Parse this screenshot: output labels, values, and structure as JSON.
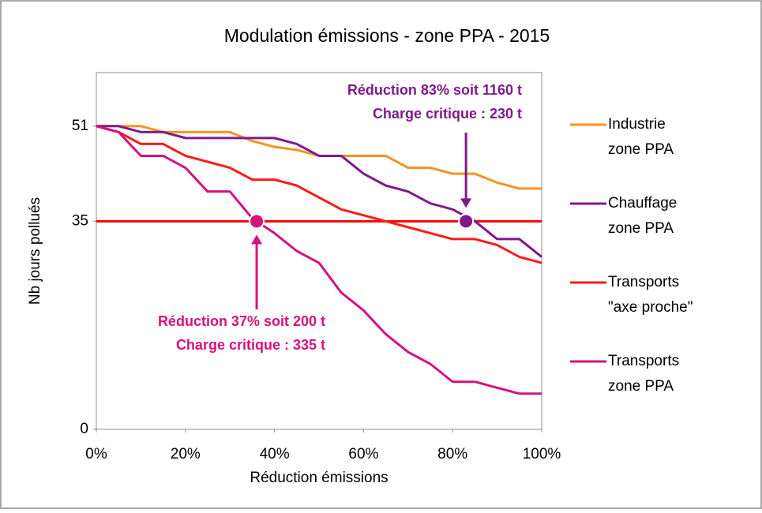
{
  "chart_data": {
    "type": "line",
    "title": "Modulation émissions - zone PPA - 2015",
    "x_label": "Réduction émissions",
    "y_label": "Nb jours pollués",
    "x": [
      0,
      5,
      10,
      15,
      20,
      25,
      30,
      35,
      40,
      45,
      50,
      55,
      60,
      65,
      70,
      75,
      80,
      85,
      90,
      95,
      100
    ],
    "xlim": [
      0,
      100
    ],
    "xticks": [
      {
        "value": 0,
        "label": "0%"
      },
      {
        "value": 20,
        "label": "20%"
      },
      {
        "value": 40,
        "label": "40%"
      },
      {
        "value": 60,
        "label": "60%"
      },
      {
        "value": 80,
        "label": "80%"
      },
      {
        "value": 100,
        "label": "100%"
      }
    ],
    "ylim": [
      0,
      60
    ],
    "yticks": [
      0,
      35,
      51
    ],
    "reference_line": {
      "value": 35,
      "color": "#ff0000"
    },
    "series": [
      {
        "name": "Industrie zone PPA",
        "color": "#f7941d",
        "values": [
          51,
          51,
          51,
          50,
          50,
          50,
          50,
          48.5,
          47.5,
          47,
          46,
          46,
          46,
          46,
          44,
          44,
          43,
          43,
          41.5,
          40.5,
          40.5
        ]
      },
      {
        "name": "Chauffage zone PPA",
        "color": "#7f1a8a",
        "values": [
          51,
          51,
          50,
          50,
          49,
          49,
          49,
          49,
          49,
          48,
          46,
          46,
          43,
          41,
          40,
          38,
          37,
          35,
          32,
          32,
          29
        ]
      },
      {
        "name": "Transports \"axe proche\"",
        "color": "#ff1a1a",
        "values": [
          51,
          50,
          48,
          48,
          46,
          45,
          44,
          42,
          42,
          41,
          39,
          37,
          36,
          35,
          34,
          33,
          32,
          32,
          31,
          29,
          28
        ]
      },
      {
        "name": "Transports zone PPA",
        "color": "#d6127a",
        "values": [
          51,
          50,
          46,
          46,
          44,
          40,
          40,
          35.5,
          33,
          30,
          28,
          23,
          20,
          16,
          13,
          11,
          8,
          8,
          7,
          6,
          6
        ]
      }
    ],
    "annotations": [
      {
        "lines": [
          "Réduction 83% soit 1160 t",
          "Charge critique : 230 t"
        ],
        "x": 83,
        "y": 35,
        "color": "#7f1a8a"
      },
      {
        "lines": [
          "Réduction 37% soit 200 t",
          "Charge critique : 335 t"
        ],
        "x": 36,
        "y": 35,
        "color": "#d6127a"
      }
    ]
  }
}
